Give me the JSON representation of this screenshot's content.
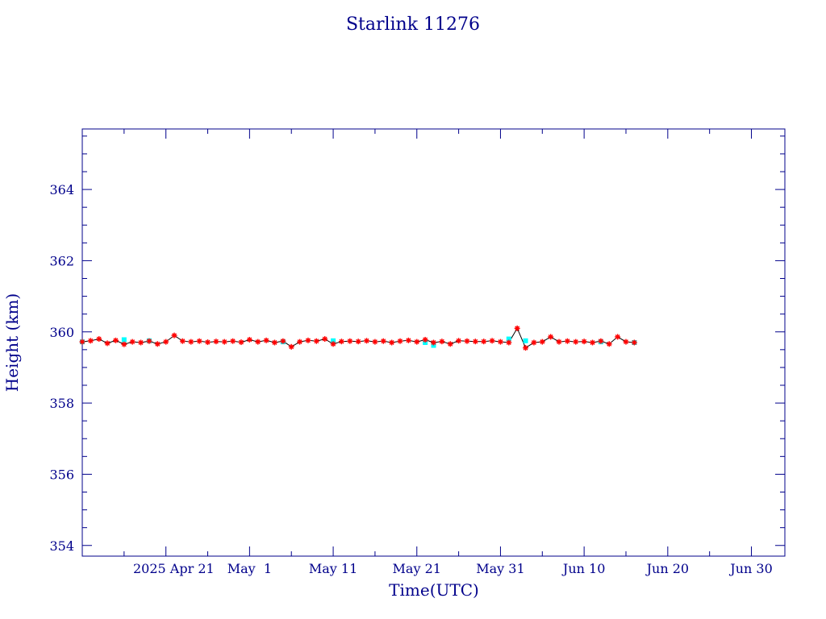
{
  "chart_data": {
    "type": "scatter",
    "title": "Starlink 11276",
    "xlabel": "Time(UTC)",
    "ylabel": "Height (km)",
    "x_range": [
      "2025-04-11",
      "2025-07-04"
    ],
    "ylim": [
      353.7,
      365.7
    ],
    "y_ticks": [
      354,
      356,
      358,
      360,
      362,
      364
    ],
    "y_tick_labels": [
      "354",
      "356",
      "358",
      "360",
      "362",
      "364"
    ],
    "x_ticks": [
      "2025-04-21",
      "2025-05-01",
      "2025-05-11",
      "2025-05-21",
      "2025-05-31",
      "2025-06-10",
      "2025-06-20",
      "2025-06-30"
    ],
    "x_tick_labels": [
      "2025 Apr 21",
      "May  1",
      "May 11",
      "May 21",
      "May 31",
      "Jun 10",
      "Jun 20",
      "Jun 30"
    ],
    "grid": false,
    "colors": {
      "axes": "#00008b",
      "line": "#000000",
      "measured": "#ff0000",
      "fitted": "#00ffff"
    },
    "series": [
      {
        "marker": "star",
        "values": [
          [
            "2025-04-11",
            359.72
          ],
          [
            "2025-04-12",
            359.75
          ],
          [
            "2025-04-13",
            359.8
          ],
          [
            "2025-04-14",
            359.68
          ],
          [
            "2025-04-15",
            359.76
          ],
          [
            "2025-04-16",
            359.65
          ],
          [
            "2025-04-17",
            359.72
          ],
          [
            "2025-04-18",
            359.7
          ],
          [
            "2025-04-19",
            359.74
          ],
          [
            "2025-04-20",
            359.66
          ],
          [
            "2025-04-21",
            359.72
          ],
          [
            "2025-04-22",
            359.9
          ],
          [
            "2025-04-23",
            359.74
          ],
          [
            "2025-04-24",
            359.72
          ],
          [
            "2025-04-25",
            359.74
          ],
          [
            "2025-04-26",
            359.71
          ],
          [
            "2025-04-27",
            359.73
          ],
          [
            "2025-04-28",
            359.72
          ],
          [
            "2025-04-29",
            359.74
          ],
          [
            "2025-04-30",
            359.71
          ],
          [
            "2025-05-01",
            359.78
          ],
          [
            "2025-05-02",
            359.72
          ],
          [
            "2025-05-03",
            359.76
          ],
          [
            "2025-05-04",
            359.7
          ],
          [
            "2025-05-05",
            359.74
          ],
          [
            "2025-05-06",
            359.58
          ],
          [
            "2025-05-07",
            359.72
          ],
          [
            "2025-05-08",
            359.76
          ],
          [
            "2025-05-09",
            359.74
          ],
          [
            "2025-05-10",
            359.8
          ],
          [
            "2025-05-11",
            359.66
          ],
          [
            "2025-05-12",
            359.73
          ],
          [
            "2025-05-13",
            359.74
          ],
          [
            "2025-05-14",
            359.73
          ],
          [
            "2025-05-15",
            359.75
          ],
          [
            "2025-05-16",
            359.72
          ],
          [
            "2025-05-17",
            359.74
          ],
          [
            "2025-05-18",
            359.7
          ],
          [
            "2025-05-19",
            359.74
          ],
          [
            "2025-05-20",
            359.76
          ],
          [
            "2025-05-21",
            359.72
          ],
          [
            "2025-05-22",
            359.78
          ],
          [
            "2025-05-23",
            359.7
          ],
          [
            "2025-05-24",
            359.73
          ],
          [
            "2025-05-25",
            359.66
          ],
          [
            "2025-05-26",
            359.75
          ],
          [
            "2025-05-27",
            359.74
          ],
          [
            "2025-05-28",
            359.73
          ],
          [
            "2025-05-29",
            359.73
          ],
          [
            "2025-05-30",
            359.75
          ],
          [
            "2025-05-31",
            359.72
          ],
          [
            "2025-06-01",
            359.7
          ],
          [
            "2025-06-02",
            360.1
          ],
          [
            "2025-06-03",
            359.55
          ],
          [
            "2025-06-04",
            359.7
          ],
          [
            "2025-06-05",
            359.72
          ],
          [
            "2025-06-06",
            359.86
          ],
          [
            "2025-06-07",
            359.72
          ],
          [
            "2025-06-08",
            359.74
          ],
          [
            "2025-06-09",
            359.72
          ],
          [
            "2025-06-10",
            359.73
          ],
          [
            "2025-06-11",
            359.7
          ],
          [
            "2025-06-12",
            359.74
          ],
          [
            "2025-06-13",
            359.66
          ],
          [
            "2025-06-14",
            359.86
          ],
          [
            "2025-06-15",
            359.72
          ],
          [
            "2025-06-16",
            359.7
          ]
        ]
      },
      {
        "marker": "dot",
        "values": [
          [
            "2025-04-11",
            359.72
          ],
          [
            "2025-04-16",
            359.78
          ],
          [
            "2025-04-19",
            359.75
          ],
          [
            "2025-05-05",
            359.72
          ],
          [
            "2025-05-11",
            359.75
          ],
          [
            "2025-05-22",
            359.7
          ],
          [
            "2025-05-23",
            359.62
          ],
          [
            "2025-06-01",
            359.8
          ],
          [
            "2025-06-03",
            359.75
          ],
          [
            "2025-06-12",
            359.72
          ],
          [
            "2025-06-16",
            359.7
          ]
        ]
      }
    ]
  }
}
